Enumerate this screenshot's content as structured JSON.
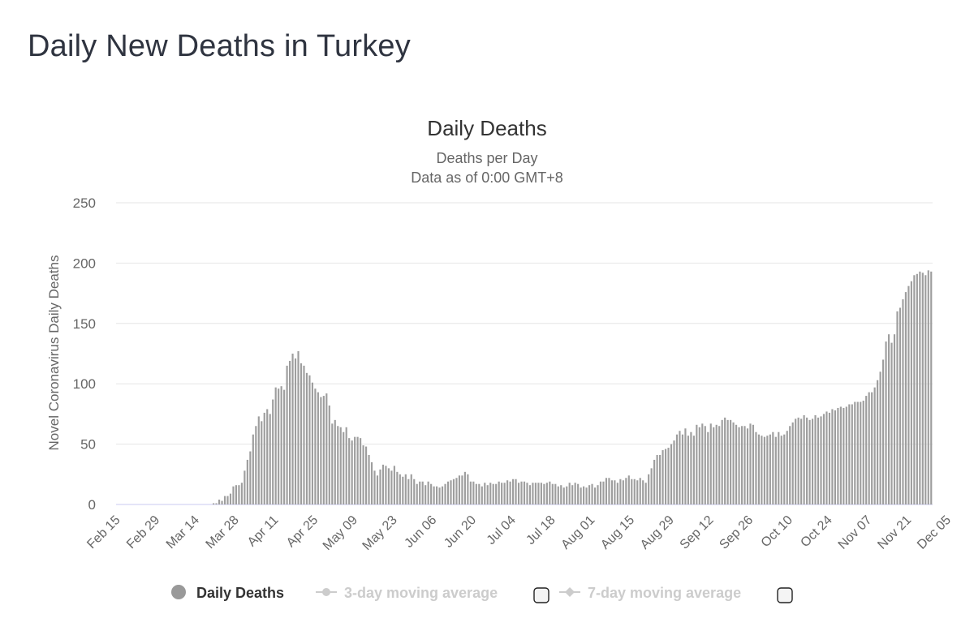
{
  "page": {
    "title": "Daily New Deaths in Turkey"
  },
  "chart_data": {
    "type": "bar",
    "title": "Daily Deaths",
    "subtitle_lines": [
      "Deaths per Day",
      "Data as of 0:00 GMT+8"
    ],
    "ylabel": "Novel Coronavirus Daily Deaths",
    "xlabel": "",
    "ylim": [
      0,
      250
    ],
    "yticks": [
      0,
      50,
      100,
      150,
      200,
      250
    ],
    "grid": true,
    "bar_color": "#9e9e9e",
    "grid_color": "#e6e6e6",
    "baseline_color": "#c8c8f0",
    "start_date": "2020-02-15",
    "x_tick_labels": [
      "Feb 15",
      "Feb 29",
      "Mar 14",
      "Mar 28",
      "Apr 11",
      "Apr 25",
      "May 09",
      "May 23",
      "Jun 06",
      "Jun 20",
      "Jul 04",
      "Jul 18",
      "Aug 01",
      "Aug 15",
      "Aug 29",
      "Sep 12",
      "Sep 26",
      "Oct 10",
      "Oct 24",
      "Nov 07",
      "Nov 21",
      "Dec 05"
    ],
    "series": [
      {
        "name": "Daily Deaths",
        "values": [
          0,
          0,
          0,
          0,
          0,
          0,
          0,
          0,
          0,
          0,
          0,
          0,
          0,
          0,
          0,
          0,
          0,
          0,
          0,
          0,
          0,
          0,
          0,
          0,
          0,
          0,
          0,
          0,
          0,
          0,
          0,
          0,
          0,
          0,
          1,
          1,
          4,
          3,
          7,
          7,
          9,
          15,
          16,
          16,
          18,
          28,
          37,
          44,
          58,
          65,
          73,
          69,
          76,
          79,
          75,
          87,
          97,
          96,
          98,
          95,
          115,
          119,
          125,
          121,
          127,
          117,
          115,
          109,
          107,
          101,
          96,
          93,
          89,
          90,
          92,
          82,
          67,
          70,
          65,
          64,
          60,
          64,
          55,
          53,
          56,
          56,
          55,
          49,
          48,
          41,
          35,
          28,
          24,
          29,
          33,
          32,
          30,
          28,
          32,
          27,
          25,
          23,
          25,
          21,
          25,
          21,
          17,
          19,
          19,
          16,
          19,
          17,
          15,
          15,
          14,
          15,
          17,
          19,
          20,
          21,
          22,
          24,
          24,
          27,
          25,
          19,
          19,
          17,
          17,
          15,
          18,
          16,
          18,
          17,
          17,
          19,
          18,
          18,
          20,
          19,
          21,
          21,
          18,
          19,
          19,
          18,
          16,
          18,
          18,
          18,
          18,
          17,
          18,
          19,
          17,
          17,
          15,
          16,
          14,
          15,
          18,
          16,
          18,
          17,
          14,
          15,
          14,
          16,
          17,
          14,
          16,
          19,
          19,
          22,
          22,
          20,
          20,
          18,
          21,
          20,
          22,
          24,
          21,
          21,
          20,
          22,
          20,
          18,
          25,
          30,
          37,
          41,
          41,
          45,
          46,
          47,
          50,
          53,
          58,
          61,
          58,
          63,
          57,
          60,
          57,
          66,
          64,
          67,
          65,
          60,
          67,
          64,
          66,
          65,
          70,
          72,
          70,
          70,
          68,
          66,
          64,
          65,
          65,
          63,
          67,
          66,
          60,
          58,
          57,
          56,
          57,
          58,
          60,
          56,
          60,
          57,
          58,
          61,
          65,
          68,
          71,
          72,
          71,
          74,
          72,
          70,
          71,
          74,
          72,
          73,
          75,
          77,
          76,
          79,
          78,
          80,
          81,
          80,
          81,
          83,
          83,
          85,
          85,
          85,
          86,
          90,
          93,
          93,
          97,
          103,
          110,
          120,
          135,
          141,
          134,
          141,
          160,
          163,
          170,
          176,
          181,
          185,
          190,
          191,
          193,
          192,
          190,
          194,
          193
        ]
      }
    ],
    "legend": {
      "placement": "bottom",
      "items": [
        {
          "label": "Daily Deaths",
          "active": true,
          "marker": "circle"
        },
        {
          "label": "3-day moving average",
          "active": false,
          "marker": "line-circle"
        },
        {
          "label": "7-day moving average",
          "active": false,
          "marker": "line-diamond"
        }
      ]
    }
  }
}
